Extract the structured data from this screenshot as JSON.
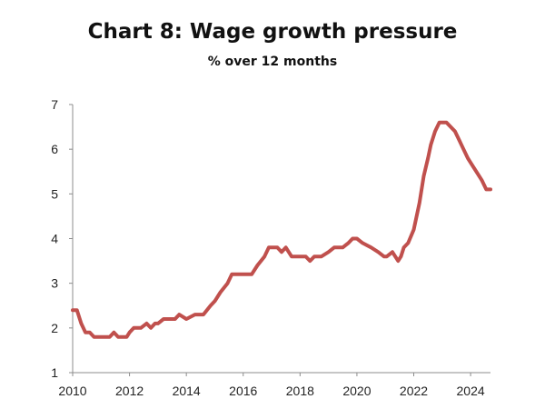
{
  "chart_data": {
    "type": "line",
    "title": "Chart 8: Wage growth pressure",
    "subtitle": "% over 12 months",
    "xlabel": "",
    "ylabel": "",
    "xlim": [
      2010,
      2024.7
    ],
    "ylim": [
      1,
      7
    ],
    "xticks": [
      "2010",
      "2012",
      "2014",
      "2016",
      "2018",
      "2020",
      "2022",
      "2024"
    ],
    "yticks": [
      "1",
      "2",
      "3",
      "4",
      "5",
      "6",
      "7"
    ],
    "grid": false,
    "line_color": "#c0504d",
    "series": [
      {
        "x": [
          2010.0,
          2010.15,
          2010.3,
          2010.45,
          2010.6,
          2010.75,
          2011.0,
          2011.3,
          2011.45,
          2011.6,
          2011.9,
          2012.0,
          2012.15,
          2012.4,
          2012.6,
          2012.75,
          2012.9,
          2013.0,
          2013.2,
          2013.45,
          2013.6,
          2013.75,
          2014.0,
          2014.3,
          2014.6,
          2014.85,
          2015.0,
          2015.2,
          2015.45,
          2015.6,
          2015.75,
          2016.0,
          2016.3,
          2016.5,
          2016.75,
          2016.9,
          2017.0,
          2017.2,
          2017.35,
          2017.5,
          2017.7,
          2017.9,
          2018.0,
          2018.2,
          2018.35,
          2018.5,
          2018.75,
          2019.0,
          2019.2,
          2019.5,
          2019.7,
          2019.85,
          2020.0,
          2020.2,
          2020.5,
          2020.75,
          2020.95,
          2021.05,
          2021.25,
          2021.45,
          2021.55,
          2021.65,
          2021.8,
          2022.0,
          2022.2,
          2022.35,
          2022.5,
          2022.6,
          2022.75,
          2022.9,
          2023.0,
          2023.15,
          2023.3,
          2023.45,
          2023.6,
          2023.75,
          2023.9,
          2024.0,
          2024.1,
          2024.2,
          2024.3,
          2024.4,
          2024.55,
          2024.7
        ],
        "y": [
          2.4,
          2.4,
          2.1,
          1.9,
          1.9,
          1.8,
          1.8,
          1.8,
          1.9,
          1.8,
          1.8,
          1.9,
          2.0,
          2.0,
          2.1,
          2.0,
          2.1,
          2.1,
          2.2,
          2.2,
          2.2,
          2.3,
          2.2,
          2.3,
          2.3,
          2.5,
          2.6,
          2.8,
          3.0,
          3.2,
          3.2,
          3.2,
          3.2,
          3.4,
          3.6,
          3.8,
          3.8,
          3.8,
          3.7,
          3.8,
          3.6,
          3.6,
          3.6,
          3.6,
          3.5,
          3.6,
          3.6,
          3.7,
          3.8,
          3.8,
          3.9,
          4.0,
          4.0,
          3.9,
          3.8,
          3.7,
          3.6,
          3.6,
          3.7,
          3.5,
          3.6,
          3.8,
          3.9,
          4.2,
          4.8,
          5.4,
          5.8,
          6.1,
          6.4,
          6.6,
          6.6,
          6.6,
          6.5,
          6.4,
          6.2,
          6.0,
          5.8,
          5.7,
          5.6,
          5.5,
          5.4,
          5.3,
          5.1,
          5.1
        ]
      }
    ]
  }
}
